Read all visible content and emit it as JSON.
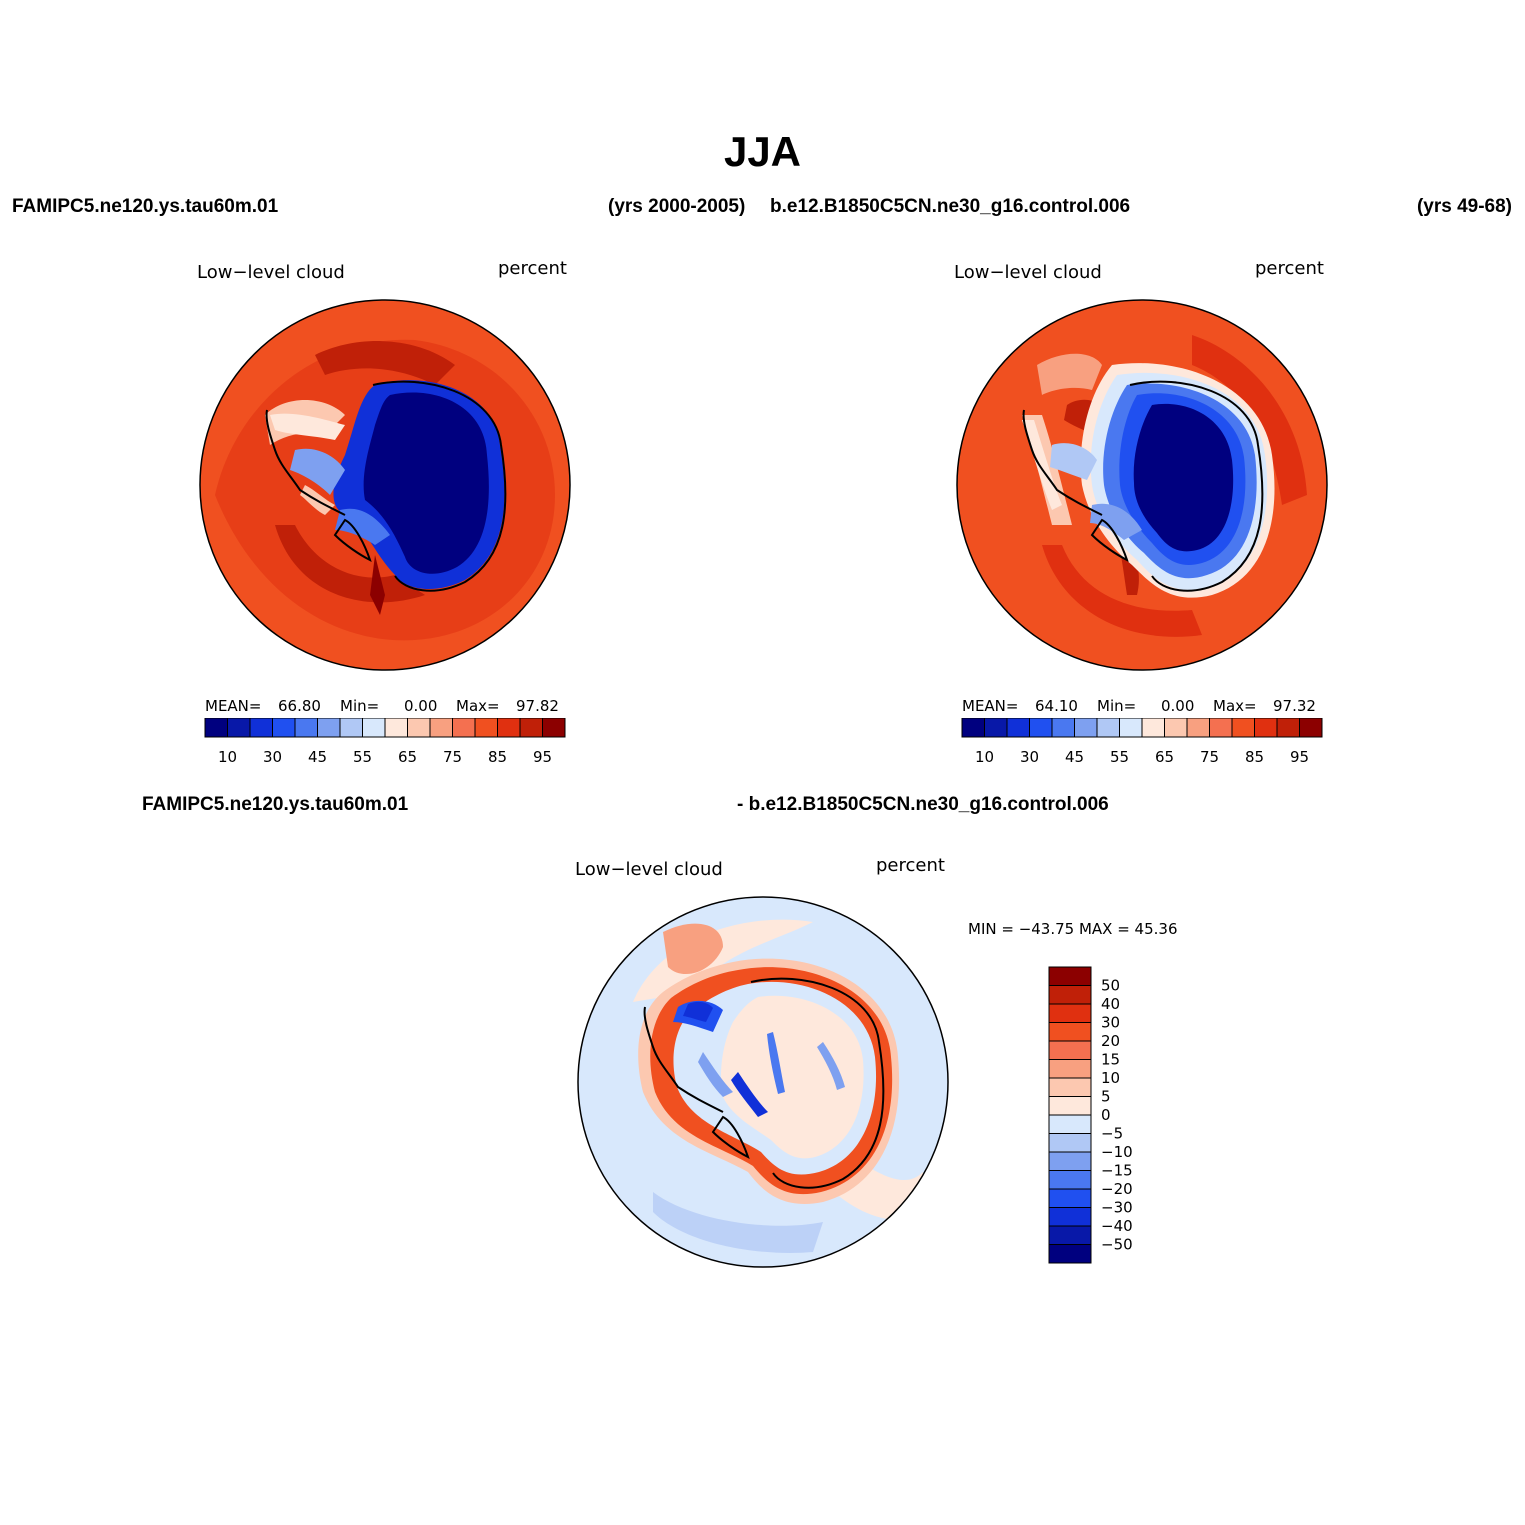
{
  "title": "JJA",
  "header": {
    "left_case": "FAMIPC5.ne120.ys.tau60m.01",
    "left_years": "(yrs 2000-2005)",
    "right_case": "b.e12.B1850C5CN.ne30_g16.control.006",
    "right_years": "(yrs 49-68)"
  },
  "diff_header": {
    "left": "FAMIPC5.ne120.ys.tau60m.01",
    "right": "- b.e12.B1850C5CN.ne30_g16.control.006"
  },
  "panels": [
    {
      "variable": "Low−level cloud",
      "units": "percent",
      "mean_label": "MEAN=",
      "mean": "66.80",
      "min_label": "Min=",
      "min": "0.00",
      "max_label": "Max=",
      "max": "97.82"
    },
    {
      "variable": "Low−level cloud",
      "units": "percent",
      "mean_label": "MEAN=",
      "mean": "64.10",
      "min_label": "Min=",
      "min": "0.00",
      "max_label": "Max=",
      "max": "97.32"
    }
  ],
  "diff_panel": {
    "variable": "Low−level cloud",
    "units": "percent",
    "minmax_text": "MIN = −43.75  MAX =   45.36"
  },
  "colorbar_abs": {
    "colors": [
      "#00007f",
      "#0818a8",
      "#1030d8",
      "#2050f0",
      "#4a78f0",
      "#7ea0f0",
      "#b0c8f5",
      "#d8e8fc",
      "#fee8dc",
      "#fcc8b0",
      "#f8a080",
      "#f47050",
      "#f05020",
      "#e03010",
      "#c02008",
      "#8c0000"
    ],
    "tick_labels": [
      "10",
      "30",
      "45",
      "55",
      "65",
      "75",
      "85",
      "95"
    ]
  },
  "colorbar_diff": {
    "colors": [
      "#8c0000",
      "#c02008",
      "#e03010",
      "#f05020",
      "#f47050",
      "#f8a080",
      "#fcc8b0",
      "#fee8dc",
      "#d8e8fc",
      "#b0c8f5",
      "#7ea0f0",
      "#4a78f0",
      "#2050f0",
      "#1030d8",
      "#0818a8",
      "#00007f"
    ],
    "tick_labels": [
      "50",
      "40",
      "30",
      "20",
      "15",
      "10",
      "5",
      "0",
      "−5",
      "−10",
      "−15",
      "−20",
      "−30",
      "−40",
      "−50"
    ]
  },
  "colors": {
    "ocean_high": "#f05020",
    "ocean_higher": "#e03010",
    "antarctica_low": "#00007f",
    "ice_edge": "#2050f0",
    "diff_background": "#d8e8fc",
    "diff_positive": "#f05020"
  }
}
